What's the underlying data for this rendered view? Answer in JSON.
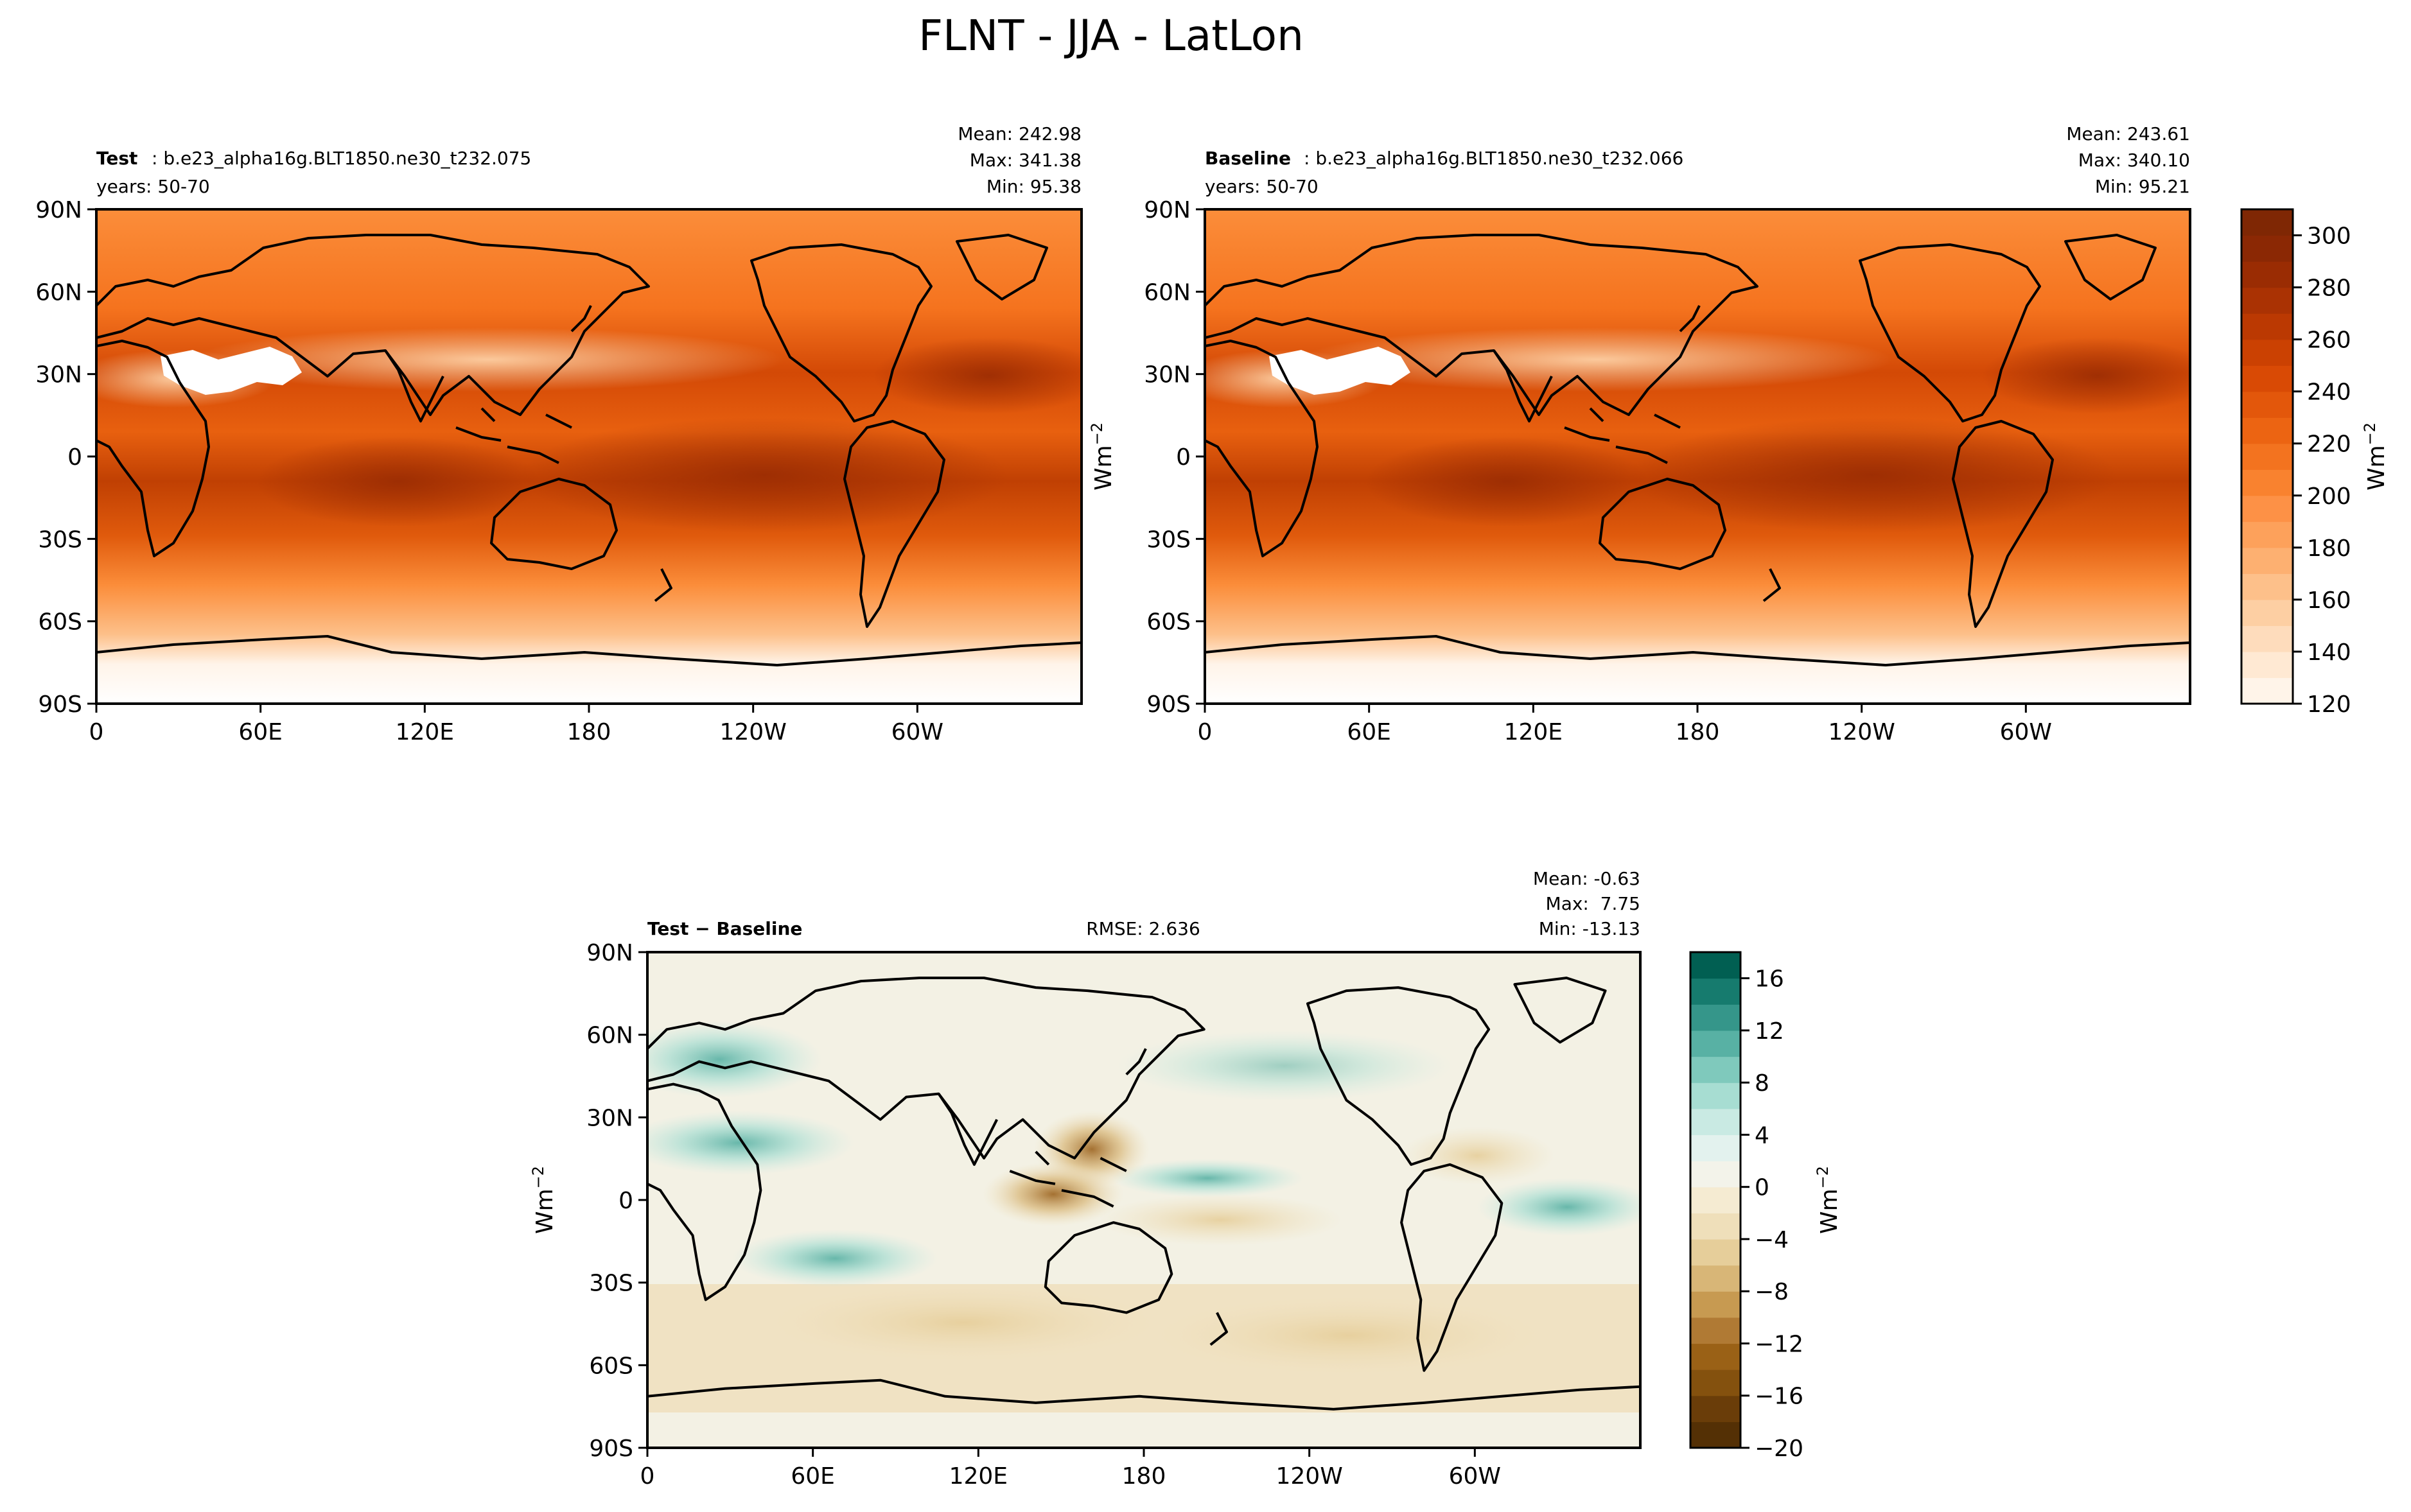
{
  "figure": {
    "title": "FLNT - JJA - LatLon"
  },
  "chart_data": [
    {
      "type": "heatmap",
      "id": "test",
      "label_bold": "Test",
      "label_rest": ": b.e23_alpha16g.BLT1850.ne30_t232.075",
      "years": "years: 50-70",
      "stats": {
        "mean": "Mean: 242.98",
        "max": "Max: 341.38",
        "min": "Min: 95.38"
      },
      "xticks": [
        "0",
        "60E",
        "120E",
        "180",
        "120W",
        "60W"
      ],
      "yticks": [
        "90N",
        "60N",
        "30N",
        "0",
        "30S",
        "60S",
        "90S"
      ],
      "x_range": [
        0,
        360
      ],
      "y_range": [
        -90,
        90
      ],
      "mean": 242.98,
      "max": 341.38,
      "min": 95.38
    },
    {
      "type": "heatmap",
      "id": "baseline",
      "label_bold": "Baseline",
      "label_rest": ": b.e23_alpha16g.BLT1850.ne30_t232.066",
      "years": "years: 50-70",
      "stats": {
        "mean": "Mean: 243.61",
        "max": "Max: 340.10",
        "min": "Min: 95.21"
      },
      "xticks": [
        "0",
        "60E",
        "120E",
        "180",
        "120W",
        "60W"
      ],
      "yticks": [
        "90N",
        "60N",
        "30N",
        "0",
        "30S",
        "60S",
        "90S"
      ],
      "x_range": [
        0,
        360
      ],
      "y_range": [
        -90,
        90
      ],
      "mean": 243.61,
      "max": 340.1,
      "min": 95.21
    },
    {
      "type": "heatmap",
      "id": "diff",
      "label_bold": "Test − Baseline",
      "rmse": "RMSE: 2.636",
      "stats": {
        "mean": "Mean: -0.63",
        "max": "Max:  7.75",
        "min": "Min: -13.13"
      },
      "xticks": [
        "0",
        "60E",
        "120E",
        "180",
        "120W",
        "60W"
      ],
      "yticks": [
        "90N",
        "60N",
        "30N",
        "0",
        "30S",
        "60S",
        "90S"
      ],
      "ylabel": "Wm",
      "x_range": [
        0,
        360
      ],
      "y_range": [
        -90,
        90
      ],
      "mean": -0.63,
      "max": 7.75,
      "min": -13.13
    }
  ],
  "colorbars": {
    "main": {
      "ticks": [
        "120",
        "140",
        "160",
        "180",
        "200",
        "220",
        "240",
        "260",
        "280",
        "300"
      ],
      "range": [
        120,
        310
      ],
      "label": "Wm",
      "colors": [
        "#fff4e9",
        "#ffe9d3",
        "#fedcbc",
        "#fdcfa3",
        "#fdc08a",
        "#fdb071",
        "#fda15b",
        "#fd9146",
        "#f9822f",
        "#f3731f",
        "#ec6412",
        "#e3570b",
        "#d94a05",
        "#cb4102",
        "#bb3902",
        "#aa3203",
        "#9a2c03",
        "#8b2804",
        "#7f2704"
      ]
    },
    "diff": {
      "ticks": [
        "16",
        "12",
        "8",
        "4",
        "0",
        "−4",
        "−8",
        "−12",
        "−16",
        "−20"
      ],
      "range": [
        -20,
        18
      ],
      "label": "Wm",
      "colors": [
        "#543005",
        "#6a3d09",
        "#84510e",
        "#9a6116",
        "#b07a34",
        "#c79a51",
        "#d8b677",
        "#e6ce9a",
        "#efdfba",
        "#f5ebd2",
        "#f3f3ea",
        "#e3f2ee",
        "#c9eae3",
        "#a7ddd2",
        "#7fc9bc",
        "#58b1a4",
        "#35968a",
        "#167b6e",
        "#015f52"
      ]
    }
  }
}
